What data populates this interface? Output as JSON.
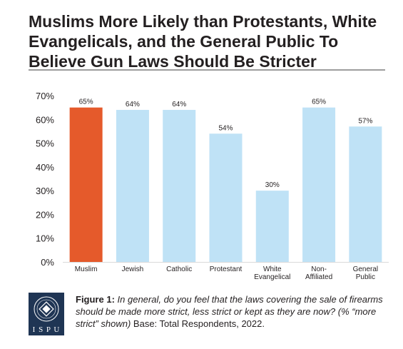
{
  "title": "Muslims More Likely than Protestants, White Evangelicals, and the General Public To Believe Gun Laws Should Be Stricter",
  "colors": {
    "highlight": "#e55a2b",
    "bar": "#bfe2f6",
    "rule": "#9d9d9d",
    "logo_bg": "#1f3554"
  },
  "chart_data": {
    "type": "bar",
    "title": "Muslims More Likely than Protestants, White Evangelicals, and the General Public To Believe Gun Laws Should Be Stricter",
    "categories": [
      [
        "Muslim"
      ],
      [
        "Jewish"
      ],
      [
        "Catholic"
      ],
      [
        "Protestant"
      ],
      [
        "White",
        "Evangelical"
      ],
      [
        "Non-",
        "Affiliated"
      ],
      [
        "General",
        "Public"
      ]
    ],
    "values": [
      65,
      64,
      64,
      54,
      30,
      65,
      57
    ],
    "data_labels": [
      "65%",
      "64%",
      "64%",
      "54%",
      "30%",
      "65%",
      "57%"
    ],
    "highlight_index": 0,
    "ylim": [
      0,
      70
    ],
    "yticks": [
      0,
      10,
      20,
      30,
      40,
      50,
      60,
      70
    ],
    "ytick_labels": [
      "0%",
      "10%",
      "20%",
      "30%",
      "40%",
      "50%",
      "60%",
      "70%"
    ],
    "xlabel": "",
    "ylabel": "",
    "grid": false
  },
  "footer": {
    "logo_icon": "ispu-logo-icon",
    "logo_text": "I S P U",
    "figure_label": "Figure 1:",
    "question": "In general, do you feel that the laws covering the sale of firearms should be made more strict, less strict or kept as they are now? (% “more strict” shown)",
    "base": "Base: Total Respondents, 2022."
  }
}
